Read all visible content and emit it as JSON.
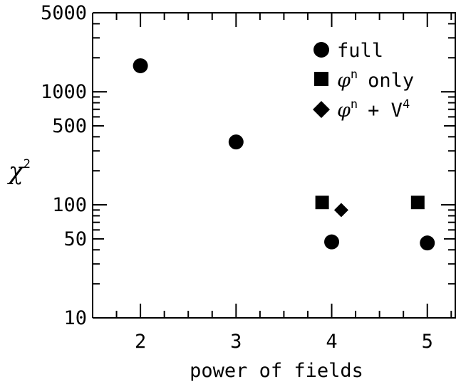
{
  "chart_data": {
    "type": "scatter",
    "xlabel": "power of fields",
    "ylabel": {
      "symbol": "χ",
      "exponent": "2"
    },
    "x_ticks": [
      "2",
      "3",
      "4",
      "5"
    ],
    "y_ticks": [
      "10",
      "50",
      "100",
      "500",
      "1000",
      "5000"
    ],
    "xlim": [
      1.5,
      5.3
    ],
    "ylim": [
      10,
      5000
    ],
    "y_scale": "log",
    "grid": false,
    "legend_position": "top-right",
    "series": [
      {
        "name": "full",
        "marker": "circle",
        "points": [
          {
            "x": 2,
            "y": 1700
          },
          {
            "x": 3,
            "y": 360
          },
          {
            "x": 4,
            "y": 47
          },
          {
            "x": 5,
            "y": 46
          }
        ]
      },
      {
        "name": {
          "symbol": "φ",
          "exponent": "n",
          "suffix": "only"
        },
        "marker": "square",
        "points": [
          {
            "x": 3.9,
            "y": 105
          },
          {
            "x": 4.9,
            "y": 105
          }
        ]
      },
      {
        "name": {
          "symbol": "φ",
          "exponent": "n",
          "suffix": "+ V",
          "suffix_exponent": "4"
        },
        "marker": "diamond",
        "points": [
          {
            "x": 4.1,
            "y": 90
          }
        ]
      }
    ]
  }
}
